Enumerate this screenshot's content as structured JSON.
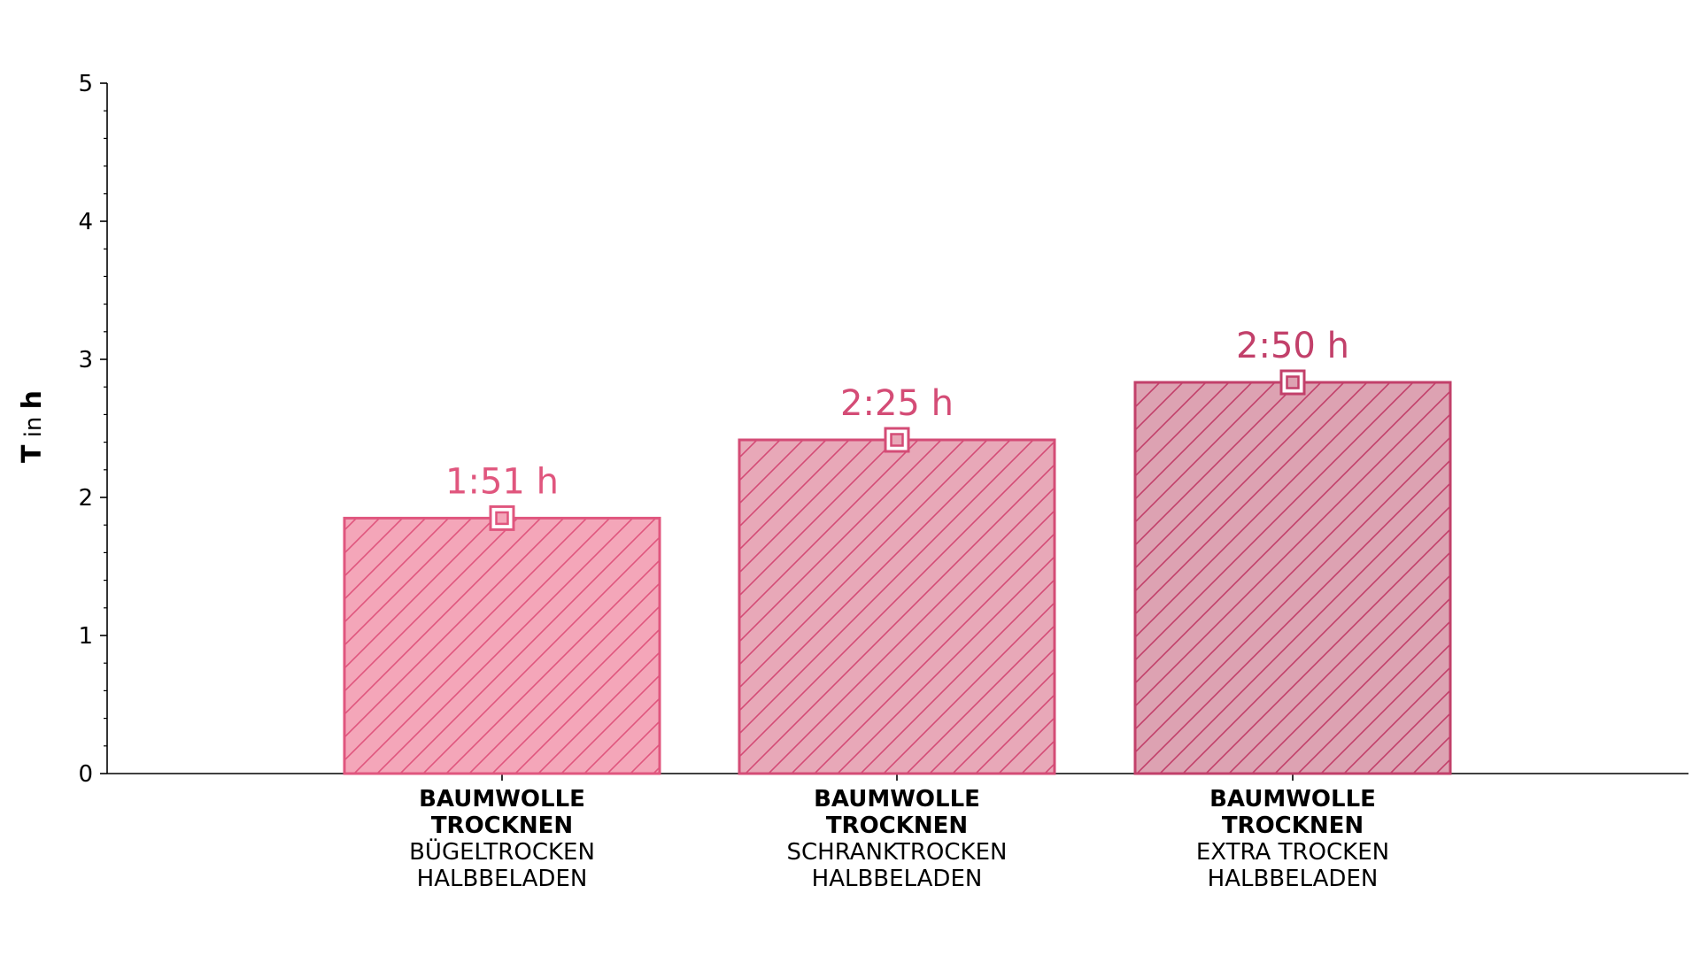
{
  "chart_data": {
    "type": "bar",
    "categories": [
      {
        "lines_bold": [
          "BAUMWOLLE",
          "TROCKNEN"
        ],
        "lines": [
          "BÜGELTROCKEN",
          "HALBBELADEN"
        ]
      },
      {
        "lines_bold": [
          "BAUMWOLLE",
          "TROCKNEN"
        ],
        "lines": [
          "SCHRANKTROCKEN",
          "HALBBELADEN"
        ]
      },
      {
        "lines_bold": [
          "BAUMWOLLE",
          "TROCKNEN"
        ],
        "lines": [
          "EXTRA TROCKEN",
          "HALBBELADEN"
        ]
      }
    ],
    "values": [
      1.85,
      2.4167,
      2.8333
    ],
    "value_labels": [
      "1:51 h",
      "2:25 h",
      "2:50 h"
    ],
    "colors": {
      "fills": [
        "#f4a6b9",
        "#e8a8b8",
        "#dda2b2"
      ],
      "strokes": [
        "#e0567e",
        "#d44c76",
        "#c2406a"
      ],
      "label_colors": [
        "#e0567e",
        "#d44c76",
        "#c2406a"
      ]
    },
    "ylabel_bold": "T",
    "ylabel_mid": " in ",
    "ylabel_bold2": "h",
    "ylim": [
      0,
      5
    ],
    "yticks": [
      "0",
      "1",
      "2",
      "3",
      "4",
      "5"
    ],
    "grid": false,
    "legend": "none",
    "hatch": "diagonal"
  }
}
